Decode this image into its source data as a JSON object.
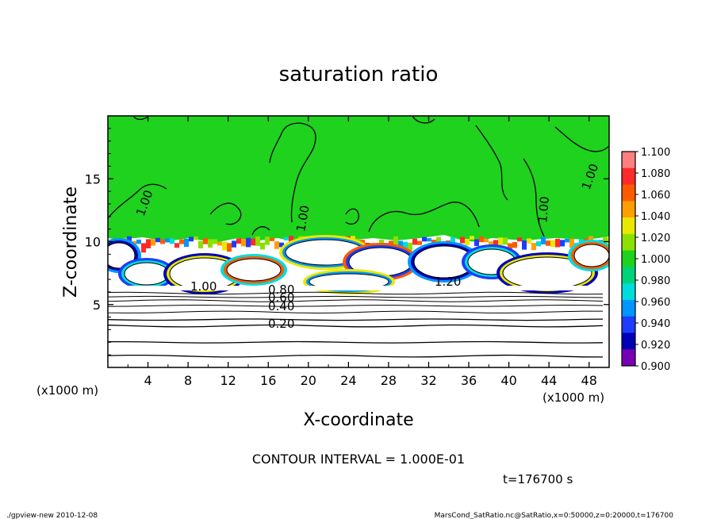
{
  "chart_data": {
    "type": "heatmap",
    "title": "saturation ratio",
    "xlabel": "X-coordinate",
    "ylabel": "Z-coordinate",
    "x_unit_label": "(x1000 m)",
    "y_unit_label": "(x1000 m)",
    "xlim": [
      0,
      50
    ],
    "ylim": [
      0,
      20
    ],
    "x_ticks": [
      4,
      8,
      12,
      16,
      20,
      24,
      28,
      32,
      36,
      40,
      44,
      48
    ],
    "y_ticks": [
      5,
      10,
      15
    ],
    "colorbar": {
      "levels": [
        "1.100",
        "1.080",
        "1.060",
        "1.040",
        "1.020",
        "1.000",
        "0.980",
        "0.960",
        "0.940",
        "0.920",
        "0.900"
      ],
      "colors": [
        "#ff7f7f",
        "#ff2a2a",
        "#ff5a00",
        "#ff9e00",
        "#e8e800",
        "#8ce000",
        "#1ed21e",
        "#00d27a",
        "#00dcdc",
        "#0096ff",
        "#1e3cff",
        "#0000b4",
        "#7800b4"
      ]
    },
    "background_color": "#1ed21e",
    "contours": [
      {
        "label": "1.00",
        "z": 1.0
      },
      {
        "label": "1.20",
        "z": 1.2
      },
      {
        "label": "0.80",
        "z": 0.8
      },
      {
        "label": "0.60",
        "z": 0.6
      },
      {
        "label": "0.40",
        "z": 0.4
      },
      {
        "label": "0.20",
        "z": 0.2
      }
    ],
    "stable_layer_contours_z_km": [
      0.9,
      2.0,
      3.3,
      3.8,
      4.4,
      4.9,
      5.3,
      5.6,
      5.9
    ]
  },
  "annotations": {
    "contour_interval": "CONTOUR INTERVAL = 1.000E-01",
    "time": "t=176700 s",
    "footer_left": "./gpview-new   2010-12-08",
    "footer_right": "MarsCond_SatRatio.nc@SatRatio,x=0:50000,z=0:20000,t=176700"
  }
}
